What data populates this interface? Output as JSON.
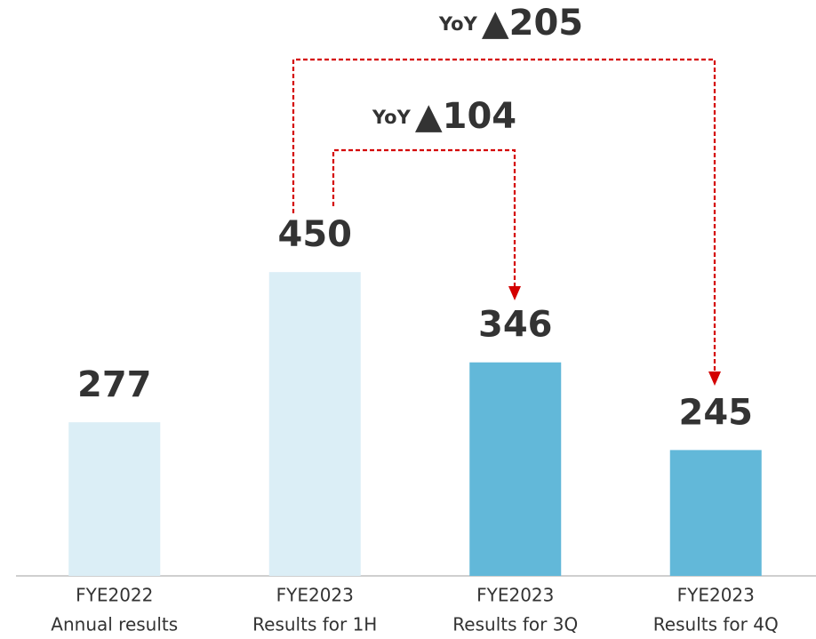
{
  "chart_data": {
    "type": "bar",
    "categories": [
      [
        "FYE2022",
        "Annual results"
      ],
      [
        "FYE2023",
        "Results for 1H"
      ],
      [
        "FYE2023",
        "Results for 3Q"
      ],
      [
        "FYE2023",
        "Results for 4Q"
      ]
    ],
    "values": [
      277,
      450,
      346,
      245
    ],
    "colors": [
      "#dbeef6",
      "#dbeef6",
      "#62b8d9",
      "#62b8d9"
    ],
    "ylim": [
      100,
      700
    ],
    "annotations": [
      {
        "label": "YoY",
        "change": "▲205"
      },
      {
        "label": "YoY",
        "change": "▲104"
      }
    ]
  }
}
